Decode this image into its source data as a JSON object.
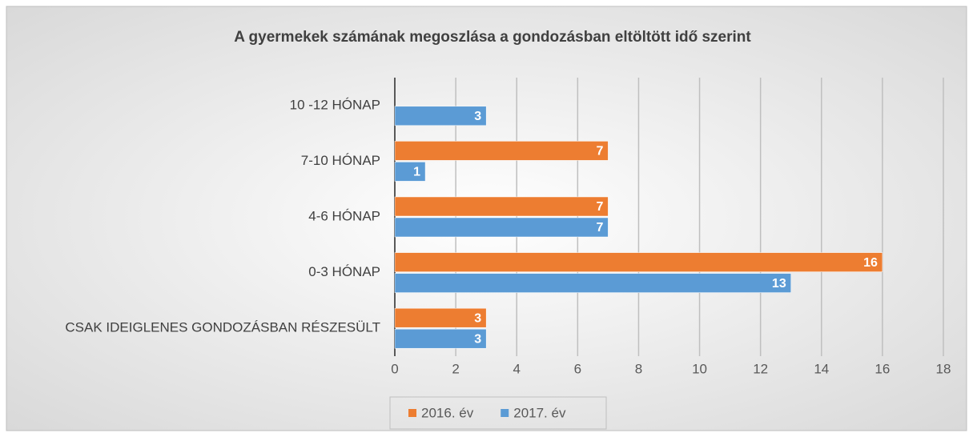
{
  "chart_data": {
    "type": "hbar",
    "title": "A gyermekek számának megoszlása a gondozásban eltöltött idő szerint",
    "categories": [
      "10 -12 HÓNAP",
      "7-10 HÓNAP",
      "4-6 HÓNAP",
      "0-3 HÓNAP",
      "CSAK IDEIGLENES GONDOZÁSBAN RÉSZESÜLT"
    ],
    "series": [
      {
        "name": "2016. év",
        "color": "#ed7d31",
        "values": [
          null,
          7,
          7,
          16,
          3
        ]
      },
      {
        "name": "2017. év",
        "color": "#5b9bd5",
        "values": [
          3,
          1,
          7,
          13,
          3
        ]
      }
    ],
    "xlim": [
      0,
      18
    ],
    "xticks": [
      0,
      2,
      4,
      6,
      8,
      10,
      12,
      14,
      16,
      18
    ],
    "grid": true,
    "legend": "bottom"
  }
}
